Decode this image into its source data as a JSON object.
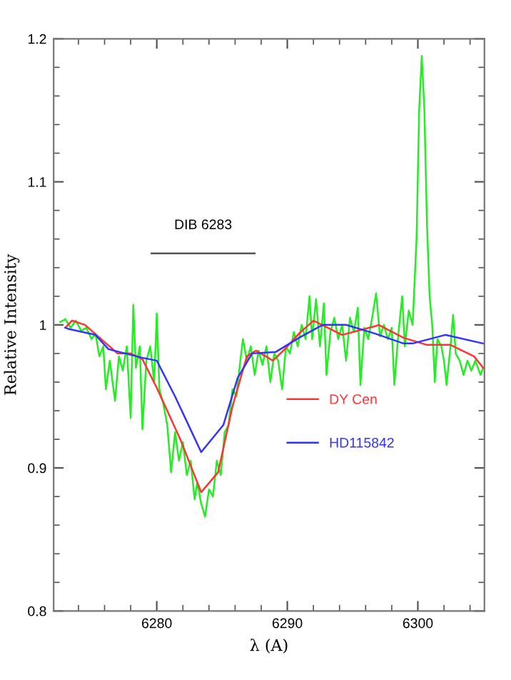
{
  "chart_data": {
    "type": "line",
    "xlabel": "λ (A)",
    "ylabel": "Relative Intensity",
    "annotations": [
      {
        "text": "DIB 6283",
        "x": 6283.55,
        "y": 1.05
      }
    ],
    "xlim": [
      6272.1,
      6305.1
    ],
    "xticks": [
      6280,
      6290,
      6300
    ],
    "ylim": [
      0.8,
      1.2
    ],
    "yticks": [
      0.8,
      0.9,
      1,
      1.1,
      1.2
    ],
    "grid": false,
    "legend": "right",
    "marker": "none",
    "line_style": "solid",
    "series": [
      {
        "color": "#22ee22",
        "x": [
          6272.6,
          6273.0,
          6273.4,
          6273.8,
          6274.2,
          6274.6,
          6275.0,
          6275.3,
          6275.6,
          6275.9,
          6276.1,
          6276.4,
          6276.8,
          6277.1,
          6277.4,
          6277.7,
          6278.0,
          6278.2,
          6278.4,
          6278.7,
          6278.9,
          6279.2,
          6279.5,
          6279.8,
          6280.0,
          6280.2,
          6280.5,
          6280.8,
          6281.1,
          6281.4,
          6281.7,
          6282.0,
          6282.3,
          6282.6,
          6282.9,
          6283.1,
          6283.4,
          6283.7,
          6284.0,
          6284.3,
          6284.6,
          6284.9,
          6285.2,
          6285.5,
          6285.8,
          6286.1,
          6286.4,
          6286.6,
          6286.9,
          6287.2,
          6287.5,
          6287.8,
          6288.1,
          6288.4,
          6288.7,
          6289.0,
          6289.3,
          6289.6,
          6289.9,
          6290.2,
          6290.5,
          6290.8,
          6291.1,
          6291.4,
          6291.7,
          6291.9,
          6292.2,
          6292.5,
          6292.8,
          6293.0,
          6293.3,
          6293.6,
          6293.9,
          6294.2,
          6294.5,
          6294.8,
          6295.1,
          6295.4,
          6295.6,
          6295.9,
          6296.2,
          6296.5,
          6296.8,
          6297.1,
          6297.4,
          6297.7,
          6298.0,
          6298.2,
          6298.5,
          6298.8,
          6299.0,
          6299.3,
          6299.6,
          6299.9,
          6300.1,
          6300.3,
          6300.5,
          6300.7,
          6300.9,
          6301.1,
          6301.3,
          6301.5,
          6301.8,
          6302.0,
          6302.2,
          6302.5,
          6302.7,
          6302.9,
          6303.2,
          6303.5,
          6303.8,
          6304.1,
          6304.4,
          6304.8,
          6305.0
        ],
        "values": [
          1.002,
          1.004,
          0.998,
          1.003,
          0.996,
          0.998,
          0.99,
          0.994,
          0.978,
          0.985,
          0.955,
          0.975,
          0.947,
          0.978,
          0.968,
          0.985,
          0.935,
          1.014,
          0.97,
          0.985,
          0.927,
          0.975,
          0.985,
          0.96,
          1.008,
          0.955,
          0.945,
          0.93,
          0.897,
          0.925,
          0.905,
          0.918,
          0.895,
          0.905,
          0.878,
          0.89,
          0.875,
          0.866,
          0.885,
          0.88,
          0.905,
          0.895,
          0.925,
          0.93,
          0.955,
          0.95,
          0.975,
          0.99,
          0.975,
          0.985,
          0.965,
          0.982,
          0.972,
          0.985,
          0.96,
          0.98,
          0.975,
          0.955,
          0.985,
          0.98,
          0.995,
          0.985,
          1.0,
          0.99,
          1.02,
          0.99,
          1.018,
          0.985,
          1.015,
          0.965,
          0.995,
          1.005,
          0.99,
          1.0,
          0.975,
          1.005,
          0.995,
          1.012,
          0.958,
          0.998,
          0.99,
          1.005,
          1.022,
          0.992,
          1.0,
          0.99,
          0.998,
          0.958,
          0.993,
          1.02,
          0.985,
          1.01,
          1.0,
          1.06,
          1.15,
          1.188,
          1.15,
          1.07,
          1.02,
          1.0,
          0.96,
          0.99,
          0.985,
          0.975,
          0.958,
          0.985,
          1.007,
          0.98,
          0.975,
          0.965,
          0.975,
          0.968,
          0.975,
          0.965,
          0.97
        ]
      },
      {
        "name": "DY Cen",
        "color": "#ff3333",
        "x": [
          6273.0,
          6273.5,
          6274.5,
          6276.0,
          6277.0,
          6278.0,
          6278.9,
          6280.0,
          6281.8,
          6283.4,
          6284.7,
          6285.8,
          6286.9,
          6287.6,
          6288.9,
          6289.8,
          6290.9,
          6292.0,
          6294.2,
          6296.7,
          6297.0,
          6298.9,
          6300.7,
          6302.5,
          6304.3,
          6305.0
        ],
        "values": [
          0.998,
          1.003,
          1.0,
          0.988,
          0.98,
          0.98,
          0.976,
          0.956,
          0.92,
          0.883,
          0.897,
          0.943,
          0.978,
          0.982,
          0.975,
          0.983,
          0.994,
          1.003,
          0.993,
          0.999,
          1.0,
          0.991,
          0.986,
          0.986,
          0.978,
          0.97
        ]
      },
      {
        "name": "HD115842",
        "color": "#3333ff",
        "x": [
          6273.0,
          6273.3,
          6275.3,
          6276.3,
          6278.9,
          6280.0,
          6281.4,
          6283.4,
          6285.1,
          6286.2,
          6287.3,
          6289.1,
          6290.9,
          6292.7,
          6294.5,
          6296.7,
          6298.9,
          6299.6,
          6302.1,
          6305.0
        ],
        "values": [
          0.998,
          0.997,
          0.993,
          0.983,
          0.977,
          0.975,
          0.95,
          0.911,
          0.93,
          0.963,
          0.98,
          0.981,
          0.991,
          1.0,
          1.0,
          0.994,
          0.987,
          0.987,
          0.993,
          0.987
        ]
      },
      {
        "color": "#555555",
        "x": [
          6279.6,
          6287.5
        ],
        "values": [
          1.05,
          1.05
        ]
      }
    ]
  }
}
